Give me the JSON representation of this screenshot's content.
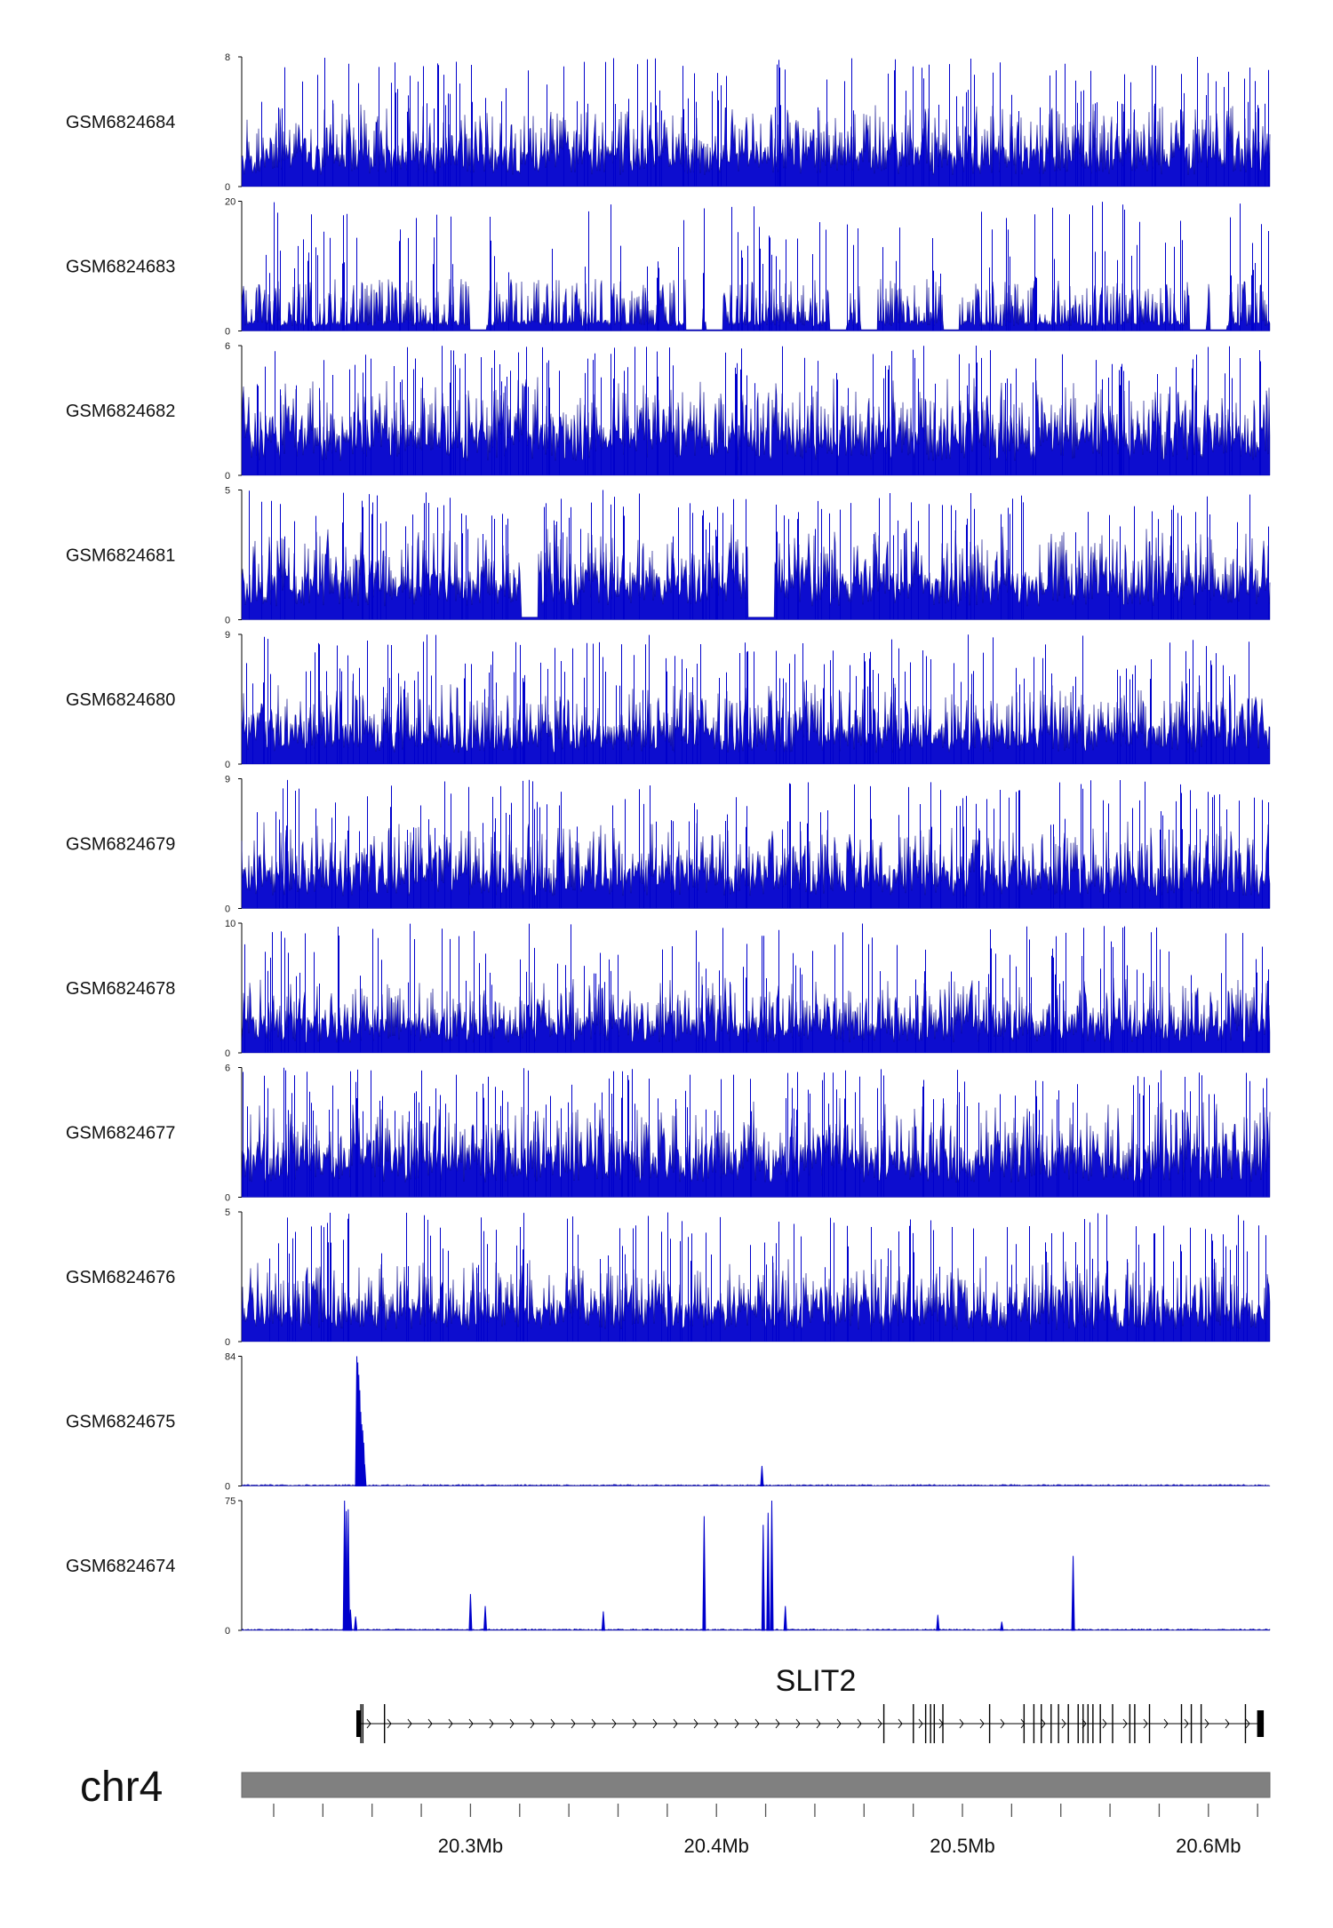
{
  "chart_data": {
    "type": "area",
    "x_unit": "Mb",
    "x_range": [
      20.207,
      20.625
    ],
    "x_ticks": [
      20.22,
      20.24,
      20.26,
      20.28,
      20.3,
      20.32,
      20.34,
      20.36,
      20.38,
      20.4,
      20.42,
      20.44,
      20.46,
      20.48,
      20.5,
      20.52,
      20.54,
      20.56,
      20.58,
      20.6,
      20.62
    ],
    "x_tick_labels": [
      {
        "x": 20.3,
        "label": "20.3Mb"
      },
      {
        "x": 20.4,
        "label": "20.4Mb"
      },
      {
        "x": 20.5,
        "label": "20.5Mb"
      },
      {
        "x": 20.6,
        "label": "20.6Mb"
      }
    ],
    "chromosome": "chr4",
    "track_color": "#0000cc",
    "tracks": [
      {
        "name": "GSM6824684",
        "ylim": [
          0,
          8
        ],
        "style": "noise",
        "base": 0.22,
        "spread": 0.35,
        "gaps": []
      },
      {
        "name": "GSM6824683",
        "ylim": [
          0,
          20
        ],
        "style": "sparse",
        "base": 0.12,
        "spread": 0.28,
        "gaps": [
          0.23,
          0.44,
          0.46,
          0.58,
          0.61,
          0.69,
          0.93,
          0.95
        ]
      },
      {
        "name": "GSM6824682",
        "ylim": [
          0,
          6
        ],
        "style": "noise",
        "base": 0.28,
        "spread": 0.38,
        "gaps": []
      },
      {
        "name": "GSM6824681",
        "ylim": [
          0,
          5
        ],
        "style": "noise",
        "base": 0.26,
        "spread": 0.38,
        "gaps": [
          0.28,
          0.5,
          0.51
        ]
      },
      {
        "name": "GSM6824680",
        "ylim": [
          0,
          9
        ],
        "style": "noise",
        "base": 0.22,
        "spread": 0.35,
        "gaps": []
      },
      {
        "name": "GSM6824679",
        "ylim": [
          0,
          9
        ],
        "style": "noise",
        "base": 0.24,
        "spread": 0.35,
        "gaps": []
      },
      {
        "name": "GSM6824678",
        "ylim": [
          0,
          10
        ],
        "style": "noise",
        "base": 0.2,
        "spread": 0.32,
        "gaps": []
      },
      {
        "name": "GSM6824677",
        "ylim": [
          0,
          6
        ],
        "style": "noise",
        "base": 0.28,
        "spread": 0.38,
        "gaps": []
      },
      {
        "name": "GSM6824676",
        "ylim": [
          0,
          5
        ],
        "style": "noise",
        "base": 0.22,
        "spread": 0.35,
        "gaps": []
      },
      {
        "name": "GSM6824675",
        "ylim": [
          0,
          84
        ],
        "style": "peaks",
        "base": 0.01,
        "spread": 0.01,
        "peaks": [
          {
            "x": 20.2538,
            "y": 84
          },
          {
            "x": 20.2542,
            "y": 80
          },
          {
            "x": 20.2546,
            "y": 72
          },
          {
            "x": 20.255,
            "y": 62
          },
          {
            "x": 20.2554,
            "y": 48
          },
          {
            "x": 20.2558,
            "y": 40
          },
          {
            "x": 20.2562,
            "y": 36
          },
          {
            "x": 20.2566,
            "y": 28
          },
          {
            "x": 20.257,
            "y": 14
          },
          {
            "x": 20.4185,
            "y": 13
          }
        ]
      },
      {
        "name": "GSM6824674",
        "ylim": [
          0,
          75
        ],
        "style": "peaks",
        "base": 0.01,
        "spread": 0.01,
        "peaks": [
          {
            "x": 20.2488,
            "y": 75
          },
          {
            "x": 20.2495,
            "y": 69
          },
          {
            "x": 20.2503,
            "y": 70
          },
          {
            "x": 20.2512,
            "y": 12
          },
          {
            "x": 20.2533,
            "y": 8
          },
          {
            "x": 20.3,
            "y": 21
          },
          {
            "x": 20.306,
            "y": 14
          },
          {
            "x": 20.354,
            "y": 11
          },
          {
            "x": 20.395,
            "y": 66
          },
          {
            "x": 20.419,
            "y": 61
          },
          {
            "x": 20.421,
            "y": 68
          },
          {
            "x": 20.4225,
            "y": 75
          },
          {
            "x": 20.428,
            "y": 14
          },
          {
            "x": 20.49,
            "y": 9
          },
          {
            "x": 20.516,
            "y": 5
          },
          {
            "x": 20.545,
            "y": 43
          }
        ]
      }
    ],
    "gene": {
      "name": "SLIT2",
      "start": 20.2536,
      "end": 20.6225,
      "strand": "+",
      "exons": [
        {
          "s": 20.2536,
          "e": 20.2544,
          "thick": true
        },
        {
          "s": 20.2552,
          "e": 20.2556
        },
        {
          "s": 20.256,
          "e": 20.2564
        },
        {
          "s": 20.2648,
          "e": 20.2652
        },
        {
          "s": 20.4678,
          "e": 20.4682
        },
        {
          "s": 20.4798,
          "e": 20.4802
        },
        {
          "s": 20.4848,
          "e": 20.4852
        },
        {
          "s": 20.4868,
          "e": 20.4872
        },
        {
          "s": 20.4883,
          "e": 20.4887
        },
        {
          "s": 20.4918,
          "e": 20.4922
        },
        {
          "s": 20.5108,
          "e": 20.5112
        },
        {
          "s": 20.5248,
          "e": 20.5252
        },
        {
          "s": 20.5288,
          "e": 20.5292
        },
        {
          "s": 20.5318,
          "e": 20.5322
        },
        {
          "s": 20.5358,
          "e": 20.5362
        },
        {
          "s": 20.5388,
          "e": 20.5392
        },
        {
          "s": 20.5428,
          "e": 20.5432
        },
        {
          "s": 20.5468,
          "e": 20.5472
        },
        {
          "s": 20.5488,
          "e": 20.5492
        },
        {
          "s": 20.5508,
          "e": 20.5512
        },
        {
          "s": 20.5528,
          "e": 20.5532
        },
        {
          "s": 20.5558,
          "e": 20.5562
        },
        {
          "s": 20.5608,
          "e": 20.5612
        },
        {
          "s": 20.5678,
          "e": 20.5682
        },
        {
          "s": 20.5698,
          "e": 20.5702
        },
        {
          "s": 20.5758,
          "e": 20.5762
        },
        {
          "s": 20.5888,
          "e": 20.5892
        },
        {
          "s": 20.5928,
          "e": 20.5932
        },
        {
          "s": 20.5968,
          "e": 20.5972
        },
        {
          "s": 20.6148,
          "e": 20.6152
        },
        {
          "s": 20.6198,
          "e": 20.6225,
          "thick": true
        }
      ]
    }
  }
}
